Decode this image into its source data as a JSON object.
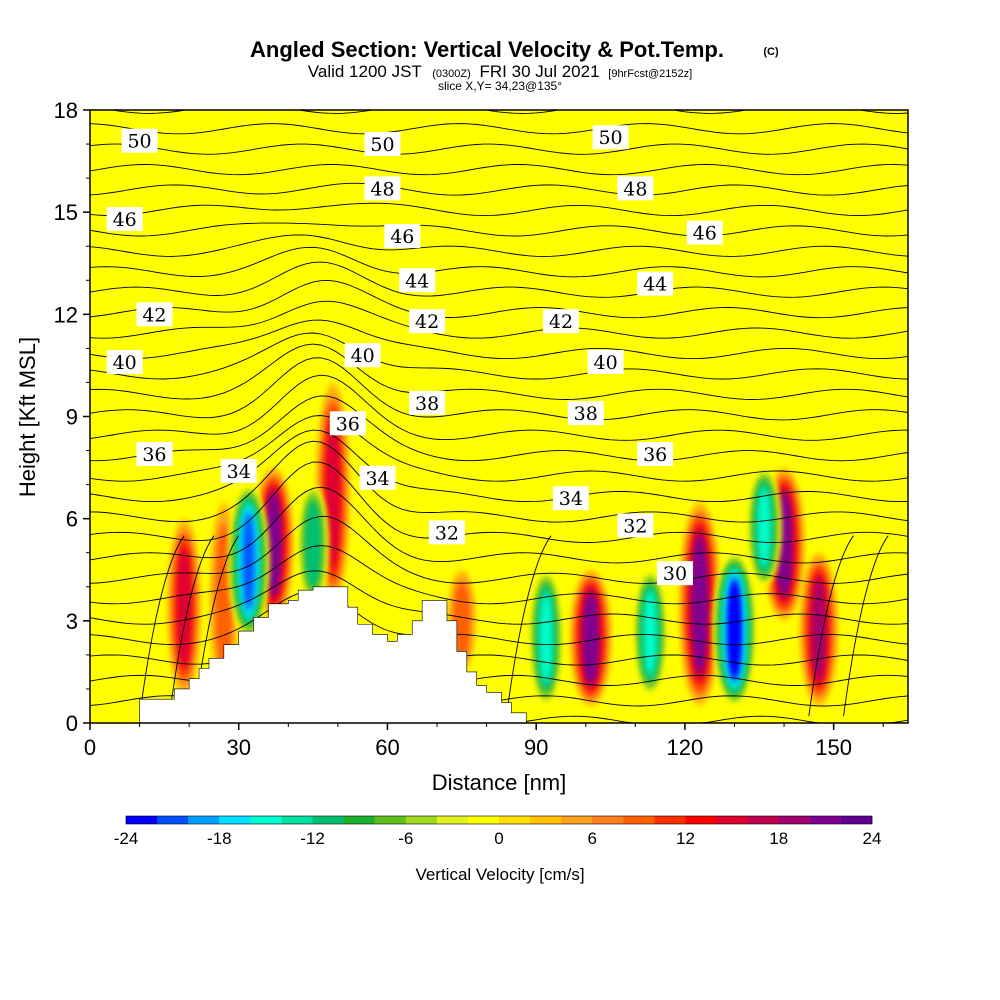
{
  "title": "Angled Section: Vertical Velocity & Pot.Temp.",
  "copyright": "(C)",
  "subtitle": {
    "valid": "Valid 1200 JST",
    "utc": "(0300Z)",
    "date": "FRI 30 Jul 2021",
    "forecast": "[9hrFcst@2152z]"
  },
  "slice": "slice X,Y= 34,23@135°",
  "colorbar": {
    "label": "Vertical Velocity [cm/s]",
    "ticks": [
      "-24",
      "-18",
      "-12",
      "-6",
      "0",
      "6",
      "12",
      "18",
      "24"
    ],
    "colors": [
      "#0000ff",
      "#0050ff",
      "#00a0ff",
      "#00e0ff",
      "#00ffd0",
      "#00e0a0",
      "#00c070",
      "#20b030",
      "#60c020",
      "#a0d820",
      "#e0f020",
      "#ffff00",
      "#ffe000",
      "#ffc000",
      "#ffa020",
      "#ff8020",
      "#ff6000",
      "#ff3000",
      "#ff0000",
      "#e00030",
      "#c00050",
      "#a00070",
      "#800090",
      "#600090"
    ]
  },
  "chart_data": {
    "type": "heatmap",
    "xlabel": "Distance [nm]",
    "ylabel": "Height [Kft MSL]",
    "xlim": [
      0,
      165
    ],
    "ylim": [
      0,
      18
    ],
    "xticks": [
      "0",
      "30",
      "60",
      "90",
      "120",
      "150"
    ],
    "yticks": [
      "0",
      "3",
      "6",
      "9",
      "12",
      "15",
      "18"
    ],
    "background_value_cm_s": 0,
    "updraft_cores": [
      {
        "x": 19,
        "z0": 0.8,
        "z1": 6.0,
        "w": 14
      },
      {
        "x": 27,
        "z0": 0.8,
        "z1": 6.5,
        "w": 9
      },
      {
        "x": 37,
        "z0": 3.0,
        "z1": 7.5,
        "w": 20
      },
      {
        "x": 49,
        "z0": 3.5,
        "z1": 10.0,
        "w": 14
      },
      {
        "x": 75,
        "z0": 1.5,
        "z1": 4.5,
        "w": 9
      },
      {
        "x": 101,
        "z0": 0.5,
        "z1": 4.5,
        "w": 21
      },
      {
        "x": 123,
        "z0": 0.5,
        "z1": 6.5,
        "w": 21
      },
      {
        "x": 140,
        "z0": 3.0,
        "z1": 7.5,
        "w": 21
      },
      {
        "x": 147,
        "z0": 0.5,
        "z1": 5.0,
        "w": 18
      }
    ],
    "downdraft_cores": [
      {
        "x": 32,
        "z0": 2.5,
        "z1": 7.0,
        "w": -21
      },
      {
        "x": 45,
        "z0": 3.5,
        "z1": 7.0,
        "w": -12
      },
      {
        "x": 92,
        "z0": 0.5,
        "z1": 4.5,
        "w": -15
      },
      {
        "x": 113,
        "z0": 0.8,
        "z1": 4.5,
        "w": -15
      },
      {
        "x": 130,
        "z0": 0.5,
        "z1": 5.0,
        "w": -23
      },
      {
        "x": 136,
        "z0": 4.0,
        "z1": 7.5,
        "w": -15
      }
    ],
    "theta_label_series": "Pot.Temp.",
    "theta_levels": [
      30,
      32,
      34,
      36,
      38,
      40,
      42,
      44,
      46,
      48,
      50
    ],
    "theta_labels": [
      {
        "text": "50",
        "x": 10,
        "z": 17.1
      },
      {
        "text": "50",
        "x": 59,
        "z": 17.0
      },
      {
        "text": "50",
        "x": 105,
        "z": 17.2
      },
      {
        "text": "48",
        "x": 59,
        "z": 15.7
      },
      {
        "text": "48",
        "x": 110,
        "z": 15.7
      },
      {
        "text": "46",
        "x": 7,
        "z": 14.8
      },
      {
        "text": "46",
        "x": 63,
        "z": 14.3
      },
      {
        "text": "46",
        "x": 124,
        "z": 14.4
      },
      {
        "text": "44",
        "x": 66,
        "z": 13.0
      },
      {
        "text": "44",
        "x": 114,
        "z": 12.9
      },
      {
        "text": "42",
        "x": 13,
        "z": 12.0
      },
      {
        "text": "42",
        "x": 68,
        "z": 11.8
      },
      {
        "text": "42",
        "x": 95,
        "z": 11.8
      },
      {
        "text": "40",
        "x": 7,
        "z": 10.6
      },
      {
        "text": "40",
        "x": 55,
        "z": 10.8
      },
      {
        "text": "40",
        "x": 104,
        "z": 10.6
      },
      {
        "text": "38",
        "x": 68,
        "z": 9.4
      },
      {
        "text": "38",
        "x": 100,
        "z": 9.1
      },
      {
        "text": "36",
        "x": 13,
        "z": 7.9
      },
      {
        "text": "36",
        "x": 52,
        "z": 8.8
      },
      {
        "text": "36",
        "x": 114,
        "z": 7.9
      },
      {
        "text": "34",
        "x": 30,
        "z": 7.4
      },
      {
        "text": "34",
        "x": 58,
        "z": 7.2
      },
      {
        "text": "34",
        "x": 97,
        "z": 6.6
      },
      {
        "text": "32",
        "x": 72,
        "z": 5.6
      },
      {
        "text": "32",
        "x": 110,
        "z": 5.8
      },
      {
        "text": "30",
        "x": 118,
        "z": 4.4
      }
    ],
    "terrain": [
      [
        10,
        0.7
      ],
      [
        17,
        1.0
      ],
      [
        20,
        1.3
      ],
      [
        22,
        1.6
      ],
      [
        24,
        1.9
      ],
      [
        27,
        2.3
      ],
      [
        30,
        2.7
      ],
      [
        33,
        3.1
      ],
      [
        36,
        3.5
      ],
      [
        40,
        3.6
      ],
      [
        42,
        3.9
      ],
      [
        45,
        4.0
      ],
      [
        50,
        4.0
      ],
      [
        52,
        3.4
      ],
      [
        54,
        2.9
      ],
      [
        57,
        2.6
      ],
      [
        60,
        2.4
      ],
      [
        62,
        2.6
      ],
      [
        65,
        3.0
      ],
      [
        67,
        3.6
      ],
      [
        71,
        3.6
      ],
      [
        72,
        3.0
      ],
      [
        74,
        2.1
      ],
      [
        76,
        1.5
      ],
      [
        78,
        1.1
      ],
      [
        80,
        0.9
      ],
      [
        83,
        0.6
      ],
      [
        85,
        0.3
      ],
      [
        88,
        0.0
      ]
    ]
  }
}
